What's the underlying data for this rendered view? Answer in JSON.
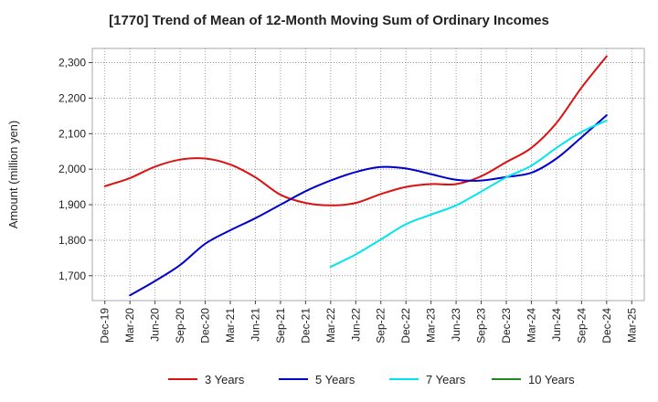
{
  "chart_data": {
    "type": "line",
    "title": "[1770]  Trend of Mean of 12-Month Moving Sum of Ordinary Incomes",
    "xlabel": "",
    "ylabel": "Amount (million yen)",
    "ylim": [
      1630,
      2340
    ],
    "yticks": [
      1700,
      1800,
      1900,
      2000,
      2100,
      2200,
      2300
    ],
    "ytick_labels": [
      "1,700",
      "1,800",
      "1,900",
      "2,000",
      "2,100",
      "2,200",
      "2,300"
    ],
    "x_tick_labels": [
      "Dec-19",
      "Mar-20",
      "Jun-20",
      "Sep-20",
      "Dec-20",
      "Mar-21",
      "Jun-21",
      "Sep-21",
      "Dec-21",
      "Mar-22",
      "Jun-22",
      "Sep-22",
      "Dec-22",
      "Mar-23",
      "Jun-23",
      "Sep-23",
      "Dec-23",
      "Mar-24",
      "Jun-24",
      "Sep-24",
      "Dec-24",
      "Mar-25"
    ],
    "grid": true,
    "legend_position": "bottom",
    "series": [
      {
        "name": "3 Years",
        "color": "#dd1111",
        "points": [
          [
            0,
            1952
          ],
          [
            1,
            1975
          ],
          [
            2,
            2007
          ],
          [
            3,
            2027
          ],
          [
            4,
            2030
          ],
          [
            5,
            2013
          ],
          [
            6,
            1977
          ],
          [
            7,
            1928
          ],
          [
            8,
            1905
          ],
          [
            9,
            1898
          ],
          [
            10,
            1905
          ],
          [
            11,
            1930
          ],
          [
            12,
            1950
          ],
          [
            13,
            1958
          ],
          [
            14,
            1958
          ],
          [
            15,
            1980
          ],
          [
            16,
            2020
          ],
          [
            17,
            2060
          ],
          [
            18,
            2130
          ],
          [
            19,
            2230
          ],
          [
            20,
            2318
          ]
        ]
      },
      {
        "name": "5 Years",
        "color": "#0000cc",
        "points": [
          [
            1,
            1645
          ],
          [
            2,
            1685
          ],
          [
            3,
            1730
          ],
          [
            4,
            1790
          ],
          [
            5,
            1828
          ],
          [
            6,
            1862
          ],
          [
            7,
            1900
          ],
          [
            8,
            1938
          ],
          [
            9,
            1968
          ],
          [
            10,
            1992
          ],
          [
            11,
            2006
          ],
          [
            12,
            2002
          ],
          [
            13,
            1986
          ],
          [
            14,
            1970
          ],
          [
            15,
            1968
          ],
          [
            16,
            1978
          ],
          [
            17,
            1990
          ],
          [
            18,
            2030
          ],
          [
            19,
            2090
          ],
          [
            20,
            2152
          ]
        ]
      },
      {
        "name": "7 Years",
        "color": "#00e5ee",
        "points": [
          [
            9,
            1725
          ],
          [
            10,
            1760
          ],
          [
            11,
            1802
          ],
          [
            12,
            1845
          ],
          [
            13,
            1872
          ],
          [
            14,
            1898
          ],
          [
            15,
            1937
          ],
          [
            16,
            1977
          ],
          [
            17,
            2010
          ],
          [
            18,
            2060
          ],
          [
            19,
            2105
          ],
          [
            20,
            2137
          ]
        ]
      },
      {
        "name": "10 Years",
        "color": "#228822",
        "points": []
      }
    ]
  }
}
